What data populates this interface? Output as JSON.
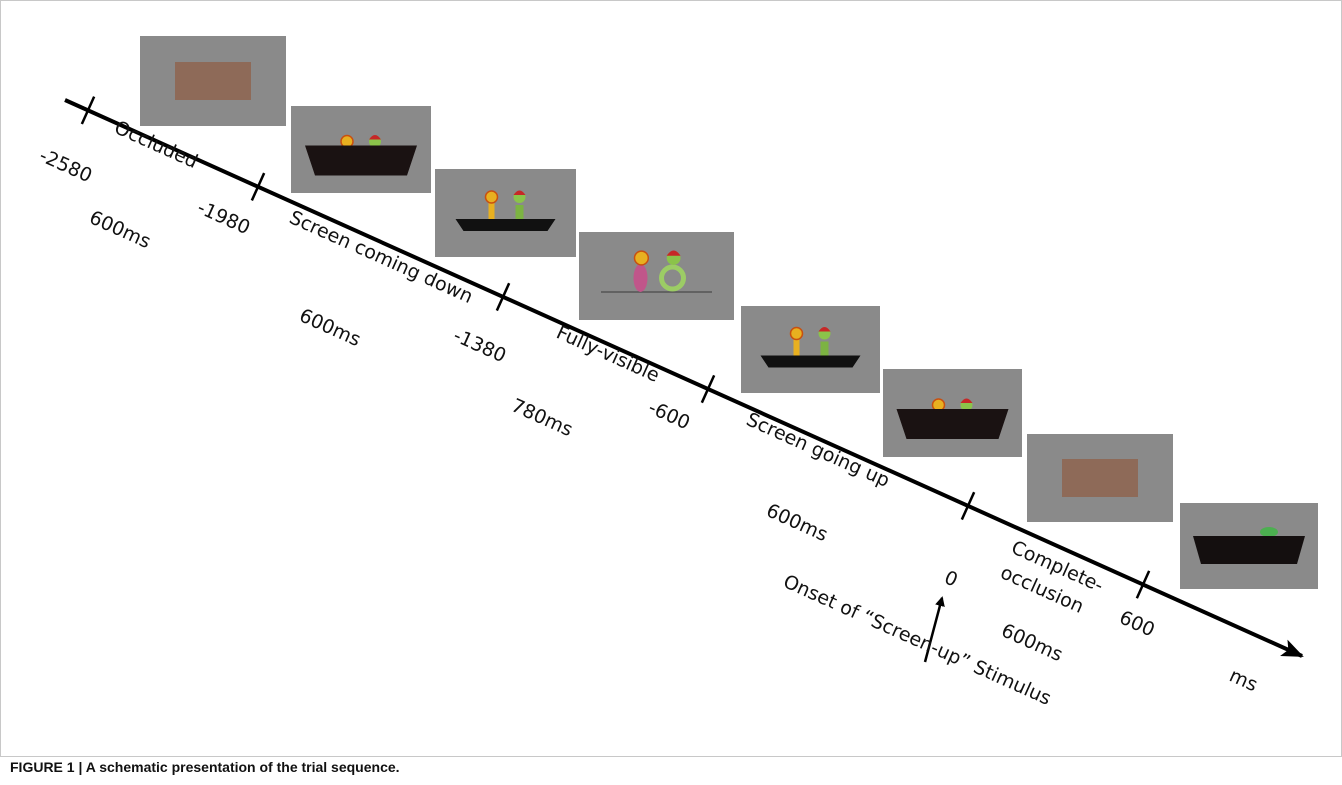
{
  "figure": {
    "timeline": {
      "ticks": [
        "-2580",
        "-1980",
        "-1380",
        "-600",
        "0",
        "600"
      ],
      "phases": [
        {
          "label_lines": [
            "Occluded"
          ],
          "duration": "600ms"
        },
        {
          "label_lines": [
            "Screen coming down"
          ],
          "duration": "600ms"
        },
        {
          "label_lines": [
            "Fully-visible"
          ],
          "duration": "780ms"
        },
        {
          "label_lines": [
            "Screen going up"
          ],
          "duration": "600ms"
        },
        {
          "label_lines": [
            "Complete-",
            "occlusion"
          ],
          "duration": "600ms"
        }
      ],
      "unit": "ms",
      "annotation": "Onset of “Screen-up” Stimulus"
    },
    "caption": "FIGURE 1 | A schematic presentation of the trial sequence."
  }
}
